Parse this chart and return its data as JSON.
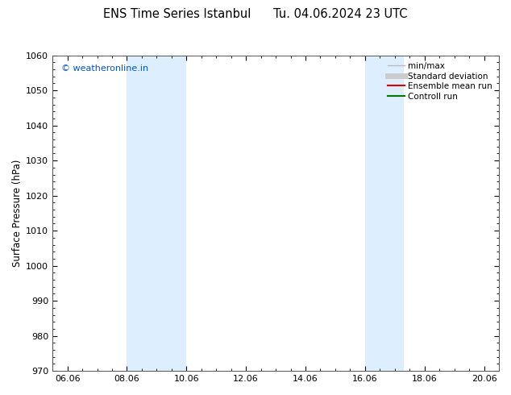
{
  "title": "ENS Time Series Istanbul      Tu. 04.06.2024 23 UTC",
  "ylabel": "Surface Pressure (hPa)",
  "ylim": [
    970,
    1060
  ],
  "yticks": [
    970,
    980,
    990,
    1000,
    1010,
    1020,
    1030,
    1040,
    1050,
    1060
  ],
  "xtick_positions": [
    0.0,
    2.0,
    4.0,
    6.0,
    8.0,
    10.0,
    12.0,
    14.0
  ],
  "xtick_labels": [
    "06.06",
    "08.06",
    "10.06",
    "12.06",
    "14.06",
    "16.06",
    "18.06",
    "20.06"
  ],
  "xlim_start": -0.5,
  "xlim_end": 14.5,
  "shaded_bands": [
    {
      "x_start": 2.0,
      "x_end": 4.0
    },
    {
      "x_start": 10.0,
      "x_end": 11.3
    }
  ],
  "band_color": "#ddeeff",
  "watermark_text": "© weatheronline.in",
  "watermark_color": "#0055cc",
  "legend_labels": [
    "min/max",
    "Standard deviation",
    "Ensemble mean run",
    "Controll run"
  ],
  "legend_colors": [
    "#bbbbbb",
    "#cccccc",
    "#dd0000",
    "#007700"
  ],
  "bg_color": "#ffffff",
  "title_fontsize": 10.5,
  "axis_label_fontsize": 8.5,
  "tick_fontsize": 8
}
